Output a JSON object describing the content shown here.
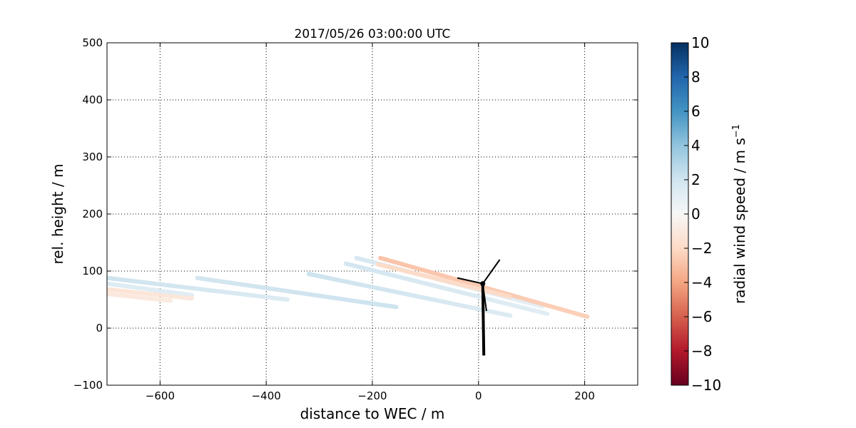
{
  "chart_data": {
    "type": "line",
    "title": "2017/05/26 03:00:00 UTC",
    "xlabel": "distance to WEC / m",
    "ylabel": "rel. height / m",
    "xlim": [
      -700,
      300
    ],
    "ylim": [
      -100,
      500
    ],
    "xticks": [
      -600,
      -400,
      -200,
      0,
      200
    ],
    "xtick_labels": [
      "−600",
      "−400",
      "−200",
      "0",
      "200"
    ],
    "yticks": [
      -100,
      0,
      100,
      200,
      300,
      400,
      500
    ],
    "ytick_labels": [
      "−100",
      "0",
      "100",
      "200",
      "300",
      "400",
      "500"
    ],
    "grid": true,
    "colorbar": {
      "label": "radial wind speed / m s",
      "label_superscript": "−1",
      "range": [
        -10,
        10
      ],
      "ticks": [
        10,
        8,
        6,
        4,
        2,
        0,
        -2,
        -4,
        -6,
        -8,
        -10
      ],
      "tick_labels": [
        "10",
        "8",
        "6",
        "4",
        "2",
        "0",
        "−2",
        "−4",
        "−6",
        "−8",
        "−10"
      ],
      "colormap": [
        "#67001f",
        "#b2182b",
        "#d6604d",
        "#f4a582",
        "#fddbc7",
        "#f7f7f7",
        "#d1e5f0",
        "#92c5de",
        "#4393c3",
        "#2166ac",
        "#053061"
      ]
    },
    "series": [
      {
        "x": [
          -700,
          -360
        ],
        "y": [
          88,
          50
        ],
        "values": [
          2.2,
          1.5
        ]
      },
      {
        "x": [
          -700,
          -540
        ],
        "y": [
          78,
          58
        ],
        "values": [
          1.5,
          1.2
        ]
      },
      {
        "x": [
          -700,
          -540
        ],
        "y": [
          68,
          52
        ],
        "values": [
          -1.5,
          -1.2
        ]
      },
      {
        "x": [
          -700,
          -580
        ],
        "y": [
          60,
          48
        ],
        "values": [
          -1.2,
          -1.0
        ]
      },
      {
        "x": [
          -530,
          -155
        ],
        "y": [
          88,
          37
        ],
        "values": [
          2.0,
          2.2
        ]
      },
      {
        "x": [
          -320,
          60
        ],
        "y": [
          95,
          22
        ],
        "values": [
          2.2,
          1.5
        ]
      },
      {
        "x": [
          -250,
          130
        ],
        "y": [
          113,
          25
        ],
        "values": [
          2.0,
          1.2
        ]
      },
      {
        "x": [
          -230,
          120
        ],
        "y": [
          123,
          38
        ],
        "values": [
          1.8,
          1.0
        ]
      },
      {
        "x": [
          -185,
          205
        ],
        "y": [
          123,
          20
        ],
        "values": [
          -3.0,
          -2.5
        ]
      },
      {
        "x": [
          -190,
          60
        ],
        "y": [
          112,
          55
        ],
        "values": [
          -2.0,
          -2.0
        ]
      }
    ],
    "turbine": {
      "tower": {
        "x": [
          10,
          8
        ],
        "y": [
          -48,
          78
        ]
      },
      "blades": [
        {
          "x": [
            8,
            40
          ],
          "y": [
            78,
            120
          ]
        },
        {
          "x": [
            8,
            -40
          ],
          "y": [
            78,
            88
          ]
        },
        {
          "x": [
            8,
            15
          ],
          "y": [
            78,
            30
          ]
        }
      ]
    }
  }
}
